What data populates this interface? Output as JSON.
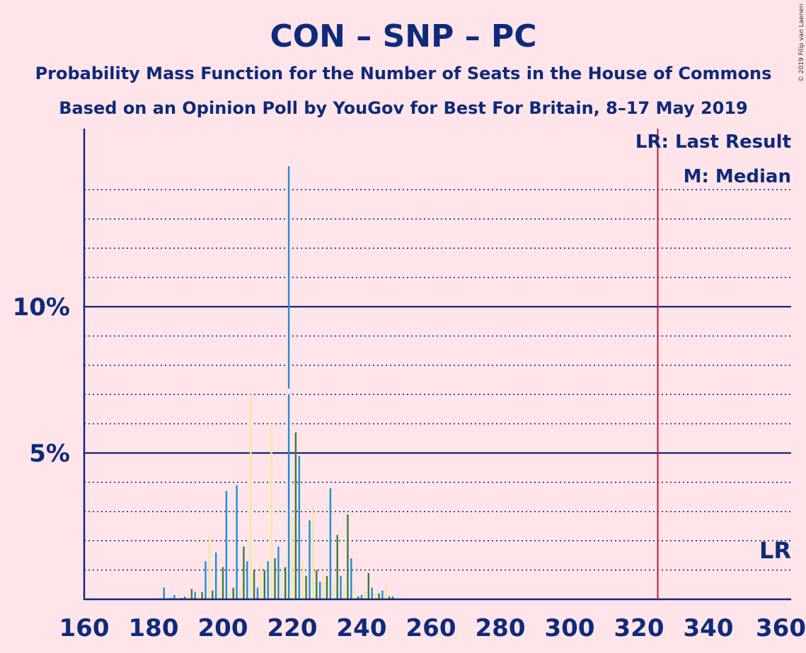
{
  "chart_data": {
    "type": "bar",
    "title": "CON – SNP – PC",
    "subtitle": "Probability Mass Function for the Number of Seats in the House of Commons",
    "subtitle2": "Based on an Opinion Poll by YouGov for Best For Britain, 8–17 May 2019",
    "copyright": "© 2019 Filip van Laenen",
    "legend": {
      "last_result": "LR: Last Result",
      "median": "M: Median",
      "lr_marker": "LR"
    },
    "x_ticks": [
      "160",
      "180",
      "200",
      "220",
      "240",
      "260",
      "280",
      "300",
      "320",
      "340",
      "360"
    ],
    "y_ticks": [
      "5%",
      "10%"
    ],
    "xlim": [
      160,
      360
    ],
    "ylim": [
      0,
      15.5
    ],
    "last_result": 325,
    "median": 219,
    "colors": {
      "background": "#ffe5e9",
      "axis": "#0f2a7a",
      "blue": "#1f8fd6",
      "yellow": "#f5e6a0",
      "green": "#3e7a3a",
      "last_result_line": "#c0193a"
    },
    "series": [
      {
        "color": "blue",
        "points": [
          [
            183,
            0.4
          ],
          [
            186,
            0.15
          ],
          [
            189,
            0.1
          ],
          [
            192,
            0.25
          ],
          [
            195,
            1.3
          ],
          [
            198,
            1.6
          ],
          [
            201,
            3.7
          ],
          [
            204,
            3.9
          ],
          [
            207,
            1.3
          ],
          [
            210,
            0.4
          ],
          [
            213,
            1.3
          ],
          [
            216,
            1.8
          ],
          [
            219,
            14.8
          ],
          [
            222,
            4.9
          ],
          [
            225,
            2.7
          ],
          [
            228,
            0.6
          ],
          [
            231,
            3.8
          ],
          [
            234,
            0.8
          ],
          [
            237,
            1.4
          ],
          [
            240,
            0.15
          ],
          [
            243,
            0.4
          ],
          [
            246,
            0.3
          ],
          [
            249,
            0.1
          ]
        ]
      },
      {
        "color": "yellow",
        "points": [
          [
            184,
            0.05
          ],
          [
            187,
            0.1
          ],
          [
            190,
            0.3
          ],
          [
            193,
            0.2
          ],
          [
            196,
            2.2
          ],
          [
            199,
            0.4
          ],
          [
            202,
            0.3
          ],
          [
            205,
            0.4
          ],
          [
            208,
            7.0
          ],
          [
            211,
            1.2
          ],
          [
            214,
            6.0
          ],
          [
            217,
            1.1
          ],
          [
            220,
            2.8
          ],
          [
            223,
            1.3
          ],
          [
            226,
            3.2
          ],
          [
            229,
            0.9
          ],
          [
            232,
            0.6
          ],
          [
            235,
            0.5
          ],
          [
            238,
            0.4
          ],
          [
            241,
            0.3
          ],
          [
            244,
            0.2
          ],
          [
            247,
            0.5
          ],
          [
            250,
            0.05
          ]
        ]
      },
      {
        "color": "green",
        "points": [
          [
            185,
            0.05
          ],
          [
            188,
            0.05
          ],
          [
            191,
            0.35
          ],
          [
            194,
            0.25
          ],
          [
            197,
            0.3
          ],
          [
            200,
            1.1
          ],
          [
            203,
            0.4
          ],
          [
            206,
            1.8
          ],
          [
            209,
            1.0
          ],
          [
            212,
            1.0
          ],
          [
            215,
            1.4
          ],
          [
            218,
            1.1
          ],
          [
            221,
            5.7
          ],
          [
            224,
            0.8
          ],
          [
            227,
            1.0
          ],
          [
            230,
            0.8
          ],
          [
            233,
            2.2
          ],
          [
            236,
            2.9
          ],
          [
            239,
            0.1
          ],
          [
            242,
            0.9
          ],
          [
            245,
            0.2
          ],
          [
            248,
            0.1
          ]
        ]
      }
    ]
  }
}
